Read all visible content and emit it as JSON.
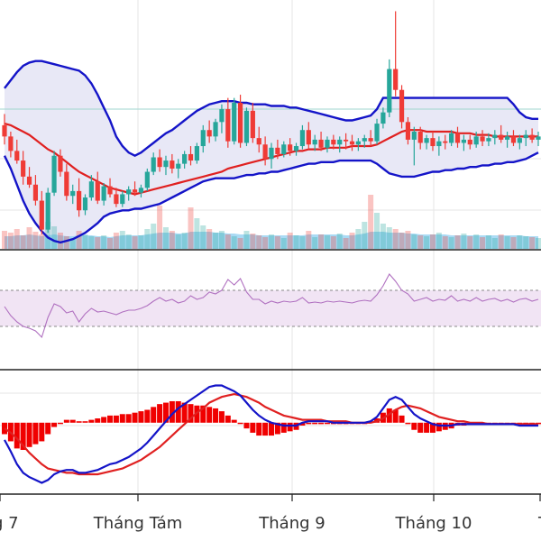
{
  "colors": {
    "up": "#26a69a",
    "down": "#ef3b36",
    "band_line": "#1414c8",
    "band_fill": "#e8e8f6",
    "ma_line": "#e02020",
    "rsi_line": "#b070c0",
    "rsi_bg": "#f1e4f4",
    "macd_line": "#1414c8",
    "signal_line": "#e02020",
    "hist": "#f00000",
    "grid": "#e6e6e6",
    "vol_area": "#8ecdf0"
  },
  "chart_data": {
    "type": "candlestick",
    "title": "",
    "x_ticks": [
      "g 7",
      "Tháng Tám",
      "Tháng 9",
      "Tháng 10",
      "T"
    ],
    "candles": [
      {
        "o": 137,
        "h": 144,
        "l": 125,
        "c": 130
      },
      {
        "o": 130,
        "h": 133,
        "l": 117,
        "c": 121
      },
      {
        "o": 121,
        "h": 128,
        "l": 113,
        "c": 115
      },
      {
        "o": 115,
        "h": 121,
        "l": 100,
        "c": 105
      },
      {
        "o": 105,
        "h": 111,
        "l": 98,
        "c": 100
      },
      {
        "o": 100,
        "h": 106,
        "l": 87,
        "c": 90
      },
      {
        "o": 90,
        "h": 96,
        "l": 69,
        "c": 72
      },
      {
        "o": 72,
        "h": 98,
        "l": 70,
        "c": 95
      },
      {
        "o": 95,
        "h": 121,
        "l": 93,
        "c": 118
      },
      {
        "o": 118,
        "h": 122,
        "l": 105,
        "c": 108
      },
      {
        "o": 108,
        "h": 113,
        "l": 90,
        "c": 93
      },
      {
        "o": 93,
        "h": 100,
        "l": 88,
        "c": 96
      },
      {
        "o": 96,
        "h": 104,
        "l": 80,
        "c": 84
      },
      {
        "o": 84,
        "h": 94,
        "l": 81,
        "c": 92
      },
      {
        "o": 92,
        "h": 106,
        "l": 90,
        "c": 102
      },
      {
        "o": 102,
        "h": 108,
        "l": 88,
        "c": 90
      },
      {
        "o": 90,
        "h": 101,
        "l": 87,
        "c": 99
      },
      {
        "o": 99,
        "h": 104,
        "l": 92,
        "c": 94
      },
      {
        "o": 94,
        "h": 98,
        "l": 86,
        "c": 88
      },
      {
        "o": 88,
        "h": 96,
        "l": 86,
        "c": 94
      },
      {
        "o": 94,
        "h": 99,
        "l": 90,
        "c": 97
      },
      {
        "o": 97,
        "h": 102,
        "l": 93,
        "c": 95
      },
      {
        "o": 95,
        "h": 100,
        "l": 92,
        "c": 98
      },
      {
        "o": 98,
        "h": 110,
        "l": 96,
        "c": 108
      },
      {
        "o": 108,
        "h": 120,
        "l": 106,
        "c": 117
      },
      {
        "o": 117,
        "h": 122,
        "l": 108,
        "c": 111
      },
      {
        "o": 111,
        "h": 118,
        "l": 106,
        "c": 115
      },
      {
        "o": 115,
        "h": 119,
        "l": 107,
        "c": 110
      },
      {
        "o": 110,
        "h": 116,
        "l": 104,
        "c": 113
      },
      {
        "o": 113,
        "h": 121,
        "l": 110,
        "c": 119
      },
      {
        "o": 119,
        "h": 124,
        "l": 112,
        "c": 115
      },
      {
        "o": 115,
        "h": 126,
        "l": 113,
        "c": 124
      },
      {
        "o": 124,
        "h": 137,
        "l": 120,
        "c": 134
      },
      {
        "o": 134,
        "h": 140,
        "l": 126,
        "c": 130
      },
      {
        "o": 130,
        "h": 141,
        "l": 127,
        "c": 139
      },
      {
        "o": 139,
        "h": 150,
        "l": 132,
        "c": 147
      },
      {
        "o": 147,
        "h": 154,
        "l": 123,
        "c": 127
      },
      {
        "o": 127,
        "h": 154,
        "l": 125,
        "c": 151
      },
      {
        "o": 151,
        "h": 156,
        "l": 123,
        "c": 126
      },
      {
        "o": 126,
        "h": 148,
        "l": 124,
        "c": 146
      },
      {
        "o": 146,
        "h": 151,
        "l": 126,
        "c": 129
      },
      {
        "o": 129,
        "h": 136,
        "l": 120,
        "c": 125
      },
      {
        "o": 125,
        "h": 130,
        "l": 112,
        "c": 116
      },
      {
        "o": 116,
        "h": 126,
        "l": 110,
        "c": 123
      },
      {
        "o": 123,
        "h": 128,
        "l": 116,
        "c": 119
      },
      {
        "o": 119,
        "h": 127,
        "l": 117,
        "c": 125
      },
      {
        "o": 125,
        "h": 129,
        "l": 118,
        "c": 121
      },
      {
        "o": 121,
        "h": 126,
        "l": 118,
        "c": 124
      },
      {
        "o": 124,
        "h": 137,
        "l": 122,
        "c": 134
      },
      {
        "o": 134,
        "h": 139,
        "l": 122,
        "c": 125
      },
      {
        "o": 125,
        "h": 131,
        "l": 121,
        "c": 128
      },
      {
        "o": 128,
        "h": 133,
        "l": 121,
        "c": 123
      },
      {
        "o": 123,
        "h": 130,
        "l": 120,
        "c": 128
      },
      {
        "o": 128,
        "h": 131,
        "l": 122,
        "c": 125
      },
      {
        "o": 125,
        "h": 130,
        "l": 120,
        "c": 128
      },
      {
        "o": 128,
        "h": 132,
        "l": 122,
        "c": 127
      },
      {
        "o": 127,
        "h": 131,
        "l": 121,
        "c": 125
      },
      {
        "o": 125,
        "h": 129,
        "l": 121,
        "c": 127
      },
      {
        "o": 127,
        "h": 131,
        "l": 123,
        "c": 129
      },
      {
        "o": 129,
        "h": 134,
        "l": 124,
        "c": 127
      },
      {
        "o": 127,
        "h": 141,
        "l": 125,
        "c": 138
      },
      {
        "o": 138,
        "h": 148,
        "l": 135,
        "c": 145
      },
      {
        "o": 145,
        "h": 178,
        "l": 142,
        "c": 172
      },
      {
        "o": 172,
        "h": 208,
        "l": 155,
        "c": 159
      },
      {
        "o": 159,
        "h": 162,
        "l": 135,
        "c": 139
      },
      {
        "o": 139,
        "h": 142,
        "l": 125,
        "c": 128
      },
      {
        "o": 128,
        "h": 136,
        "l": 112,
        "c": 133
      },
      {
        "o": 133,
        "h": 136,
        "l": 122,
        "c": 126
      },
      {
        "o": 126,
        "h": 131,
        "l": 122,
        "c": 129
      },
      {
        "o": 129,
        "h": 133,
        "l": 121,
        "c": 124
      },
      {
        "o": 124,
        "h": 130,
        "l": 118,
        "c": 127
      },
      {
        "o": 127,
        "h": 131,
        "l": 122,
        "c": 126
      },
      {
        "o": 126,
        "h": 134,
        "l": 124,
        "c": 132
      },
      {
        "o": 132,
        "h": 136,
        "l": 123,
        "c": 126
      },
      {
        "o": 126,
        "h": 131,
        "l": 121,
        "c": 128
      },
      {
        "o": 128,
        "h": 131,
        "l": 122,
        "c": 125
      },
      {
        "o": 125,
        "h": 133,
        "l": 123,
        "c": 130
      },
      {
        "o": 130,
        "h": 134,
        "l": 124,
        "c": 127
      },
      {
        "o": 127,
        "h": 132,
        "l": 124,
        "c": 129
      },
      {
        "o": 129,
        "h": 134,
        "l": 125,
        "c": 131
      },
      {
        "o": 131,
        "h": 137,
        "l": 126,
        "c": 128
      },
      {
        "o": 128,
        "h": 133,
        "l": 123,
        "c": 130
      },
      {
        "o": 130,
        "h": 134,
        "l": 124,
        "c": 126
      },
      {
        "o": 126,
        "h": 131,
        "l": 122,
        "c": 129
      },
      {
        "o": 129,
        "h": 134,
        "l": 124,
        "c": 131
      },
      {
        "o": 131,
        "h": 135,
        "l": 126,
        "c": 128
      },
      {
        "o": 128,
        "h": 133,
        "l": 124,
        "c": 130
      }
    ],
    "ma": [
      138,
      137,
      135,
      133,
      131,
      128,
      125,
      122,
      120,
      117,
      114,
      111,
      108,
      106,
      104,
      102,
      100,
      98,
      97,
      96,
      95,
      94,
      95,
      96,
      97,
      98,
      99,
      100,
      101,
      102,
      103,
      104,
      105,
      106,
      107,
      108,
      110,
      111,
      112,
      113,
      114,
      115,
      116,
      117,
      118,
      119,
      120,
      121,
      121,
      122,
      122,
      122,
      123,
      123,
      123,
      123,
      124,
      124,
      124,
      124,
      125,
      127,
      129,
      131,
      133,
      134,
      134,
      134,
      133,
      133,
      133,
      133,
      133,
      132,
      132,
      132,
      131,
      131,
      131,
      130,
      130,
      130,
      130,
      130,
      130,
      130,
      130
    ],
    "band_upper": [
      160,
      165,
      170,
      174,
      176,
      177,
      177,
      176,
      175,
      174,
      173,
      172,
      171,
      168,
      163,
      156,
      148,
      140,
      130,
      124,
      120,
      118,
      120,
      123,
      126,
      129,
      132,
      134,
      137,
      140,
      143,
      146,
      148,
      150,
      151,
      152,
      152,
      152,
      151,
      151,
      150,
      150,
      150,
      149,
      149,
      149,
      148,
      148,
      147,
      146,
      145,
      144,
      143,
      142,
      141,
      140,
      140,
      141,
      142,
      143,
      147,
      154,
      154,
      154,
      154,
      154,
      154,
      154,
      154,
      154,
      154,
      154,
      154,
      154,
      154,
      154,
      154,
      154,
      154,
      154,
      154,
      154,
      150,
      145,
      142,
      141,
      141
    ],
    "band_lower": [
      118,
      110,
      100,
      90,
      82,
      76,
      71,
      67,
      65,
      64,
      65,
      66,
      68,
      70,
      73,
      76,
      80,
      82,
      83,
      84,
      84,
      85,
      85,
      86,
      87,
      88,
      90,
      92,
      94,
      96,
      98,
      100,
      102,
      103,
      104,
      104,
      104,
      104,
      105,
      106,
      106,
      107,
      107,
      108,
      108,
      109,
      110,
      111,
      112,
      113,
      113,
      114,
      114,
      114,
      115,
      115,
      115,
      115,
      115,
      115,
      113,
      110,
      107,
      106,
      105,
      105,
      105,
      106,
      107,
      108,
      108,
      109,
      109,
      110,
      110,
      111,
      111,
      112,
      112,
      113,
      113,
      114,
      114,
      115,
      116,
      118,
      120
    ],
    "volume": [
      20,
      18,
      22,
      15,
      24,
      19,
      16,
      30,
      25,
      18,
      14,
      12,
      20,
      16,
      14,
      13,
      15,
      12,
      18,
      20,
      16,
      14,
      15,
      22,
      28,
      48,
      24,
      20,
      16,
      18,
      46,
      34,
      26,
      22,
      18,
      20,
      16,
      14,
      12,
      20,
      17,
      15,
      13,
      16,
      14,
      12,
      18,
      15,
      14,
      20,
      13,
      16,
      15,
      14,
      17,
      12,
      18,
      22,
      30,
      60,
      40,
      28,
      24,
      22,
      18,
      20,
      16,
      15,
      14,
      16,
      18,
      14,
      13,
      15,
      17,
      14,
      16,
      13,
      15,
      12,
      16,
      14,
      13,
      15,
      14,
      13,
      12
    ],
    "volume_area": [
      14,
      14,
      15,
      15,
      16,
      15,
      14,
      15,
      16,
      15,
      14,
      14,
      15,
      15,
      15,
      14,
      14,
      13,
      14,
      15,
      15,
      15,
      15,
      16,
      17,
      18,
      18,
      18,
      17,
      17,
      19,
      19,
      19,
      19,
      18,
      18,
      17,
      17,
      16,
      16,
      16,
      15,
      15,
      15,
      15,
      15,
      15,
      15,
      15,
      16,
      16,
      16,
      16,
      16,
      16,
      15,
      15,
      16,
      17,
      19,
      19,
      19,
      18,
      18,
      18,
      17,
      17,
      16,
      16,
      16,
      16,
      16,
      15,
      15,
      15,
      15,
      15,
      15,
      15,
      15,
      15,
      15,
      15,
      15,
      14,
      14,
      14
    ],
    "rsi": [
      52,
      42,
      35,
      30,
      28,
      25,
      18,
      40,
      55,
      52,
      45,
      47,
      35,
      44,
      50,
      46,
      47,
      45,
      43,
      46,
      48,
      48,
      50,
      53,
      58,
      62,
      58,
      60,
      56,
      58,
      64,
      60,
      62,
      68,
      66,
      70,
      82,
      76,
      83,
      68,
      60,
      60,
      55,
      58,
      56,
      58,
      57,
      58,
      62,
      56,
      57,
      56,
      58,
      57,
      58,
      57,
      56,
      58,
      59,
      58,
      65,
      75,
      88,
      80,
      70,
      66,
      58,
      60,
      62,
      58,
      60,
      59,
      64,
      58,
      60,
      58,
      62,
      58,
      60,
      61,
      58,
      60,
      57,
      60,
      61,
      58,
      60
    ],
    "rsi_levels": [
      70,
      30
    ],
    "macd": [
      -1.2,
      -2.0,
      -2.9,
      -3.5,
      -3.8,
      -4.0,
      -4.2,
      -4.0,
      -3.6,
      -3.4,
      -3.3,
      -3.3,
      -3.5,
      -3.5,
      -3.4,
      -3.3,
      -3.1,
      -2.9,
      -2.8,
      -2.6,
      -2.4,
      -2.1,
      -1.8,
      -1.4,
      -0.9,
      -0.4,
      0.1,
      0.6,
      1.0,
      1.3,
      1.6,
      1.9,
      2.2,
      2.5,
      2.6,
      2.6,
      2.4,
      2.2,
      1.9,
      1.4,
      0.9,
      0.5,
      0.2,
      0.0,
      -0.1,
      -0.2,
      -0.2,
      -0.2,
      0.0,
      0.1,
      0.1,
      0.1,
      0.1,
      0.0,
      0.0,
      0.0,
      0.0,
      0.0,
      0.0,
      0.1,
      0.4,
      1.0,
      1.6,
      1.8,
      1.6,
      1.1,
      0.6,
      0.3,
      0.1,
      -0.1,
      -0.2,
      -0.2,
      -0.2,
      -0.1,
      -0.1,
      -0.1,
      -0.1,
      -0.1,
      -0.1,
      -0.1,
      -0.1,
      -0.1,
      -0.1,
      -0.2,
      -0.2,
      -0.2,
      -0.2
    ],
    "signal": [
      -0.4,
      -0.7,
      -1.1,
      -1.6,
      -2.1,
      -2.5,
      -2.9,
      -3.2,
      -3.3,
      -3.4,
      -3.5,
      -3.5,
      -3.6,
      -3.6,
      -3.6,
      -3.6,
      -3.5,
      -3.4,
      -3.3,
      -3.2,
      -3.0,
      -2.8,
      -2.6,
      -2.3,
      -2.0,
      -1.7,
      -1.3,
      -0.9,
      -0.5,
      -0.1,
      0.3,
      0.7,
      1.0,
      1.4,
      1.6,
      1.8,
      1.9,
      2.0,
      1.9,
      1.8,
      1.6,
      1.4,
      1.1,
      0.9,
      0.7,
      0.5,
      0.4,
      0.3,
      0.2,
      0.2,
      0.2,
      0.2,
      0.1,
      0.1,
      0.1,
      0.1,
      0.0,
      0.0,
      0.0,
      0.0,
      0.1,
      0.3,
      0.6,
      0.9,
      1.1,
      1.2,
      1.1,
      1.0,
      0.8,
      0.6,
      0.4,
      0.3,
      0.2,
      0.1,
      0.1,
      0.0,
      0.0,
      0.0,
      -0.1,
      -0.1,
      -0.1,
      -0.1,
      -0.1,
      -0.1,
      -0.1,
      -0.1,
      -0.1
    ],
    "price_ylim": [
      60,
      215
    ],
    "rsi_ylim": [
      0,
      100
    ],
    "macd_ylim": [
      -4.8,
      3.2
    ],
    "grid": true
  }
}
